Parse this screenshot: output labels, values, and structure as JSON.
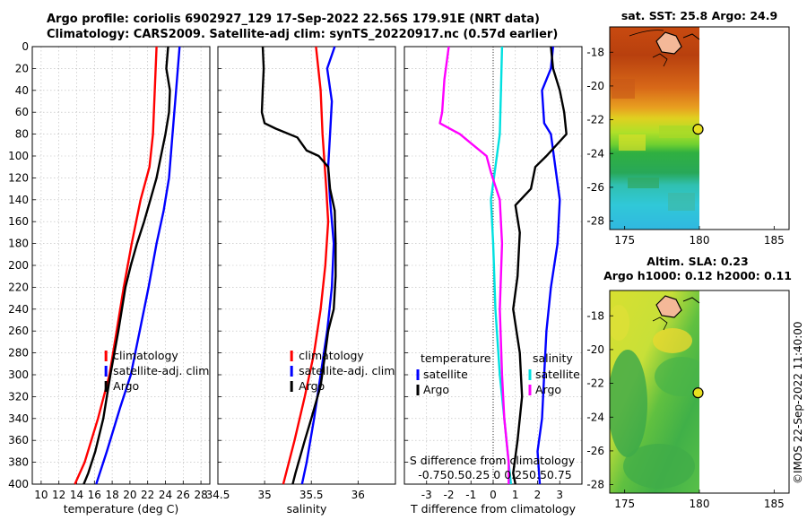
{
  "header": {
    "line1": "Argo profile: coriolis 6902927_129 17-Sep-2022 22.56S 179.91E (NRT data)",
    "line2": "Climatology: CARS2009. Satellite-adj clim: synTS_20220917.nc (0.57d earlier)"
  },
  "watermark": "©IMOS 22-Sep-2022 11:40:00",
  "colors": {
    "climatology": "#ff0000",
    "satellite": "#0000ff",
    "argo": "#000000",
    "sat_cyan": "#00e5e5",
    "argo_magenta": "#ff00ff"
  },
  "chart_data": [
    {
      "type": "line",
      "name": "temperature-profile",
      "xlabel": "temperature (deg C)",
      "xlim": [
        9,
        29
      ],
      "xticks": [
        10,
        12,
        14,
        16,
        18,
        20,
        22,
        24,
        26,
        28
      ],
      "ylim": [
        0,
        400
      ],
      "yticks": [
        0,
        20,
        40,
        60,
        80,
        100,
        120,
        140,
        160,
        180,
        200,
        220,
        240,
        260,
        280,
        300,
        320,
        340,
        360,
        380,
        400
      ],
      "legend": [
        "climatology",
        "satellite-adj. clim",
        "Argo"
      ],
      "legend_position": "bottom-right",
      "series": [
        {
          "name": "climatology",
          "color": "red",
          "points": [
            [
              23.0,
              0
            ],
            [
              22.8,
              40
            ],
            [
              22.6,
              80
            ],
            [
              22.2,
              110
            ],
            [
              21.2,
              140
            ],
            [
              20.2,
              180
            ],
            [
              19.3,
              220
            ],
            [
              18.5,
              260
            ],
            [
              17.7,
              300
            ],
            [
              16.4,
              340
            ],
            [
              14.9,
              380
            ],
            [
              13.8,
              400
            ]
          ]
        },
        {
          "name": "satellite-adj. clim",
          "color": "blue",
          "points": [
            [
              25.6,
              0
            ],
            [
              25.2,
              40
            ],
            [
              24.8,
              80
            ],
            [
              24.4,
              120
            ],
            [
              23.8,
              150
            ],
            [
              23.0,
              180
            ],
            [
              22.1,
              220
            ],
            [
              21.1,
              260
            ],
            [
              20.1,
              300
            ],
            [
              18.9,
              330
            ],
            [
              17.4,
              370
            ],
            [
              16.2,
              400
            ]
          ]
        },
        {
          "name": "Argo",
          "color": "black",
          "points": [
            [
              24.3,
              0
            ],
            [
              24.1,
              20
            ],
            [
              24.5,
              40
            ],
            [
              24.4,
              60
            ],
            [
              24.0,
              80
            ],
            [
              23.5,
              100
            ],
            [
              23.0,
              120
            ],
            [
              22.3,
              140
            ],
            [
              21.6,
              160
            ],
            [
              20.8,
              180
            ],
            [
              20.1,
              200
            ],
            [
              19.5,
              220
            ],
            [
              18.7,
              260
            ],
            [
              17.8,
              300
            ],
            [
              17.0,
              340
            ],
            [
              16.1,
              370
            ],
            [
              15.3,
              390
            ],
            [
              14.8,
              400
            ]
          ]
        }
      ]
    },
    {
      "type": "line",
      "name": "salinity-profile",
      "xlabel": "salinity",
      "xlim": [
        34.5,
        36.4
      ],
      "xticks": [
        34.5,
        35,
        35.5,
        36
      ],
      "xticklabels": [
        "34.5",
        "35",
        "35.5",
        "36"
      ],
      "ylim": [
        0,
        400
      ],
      "legend": [
        "climatology",
        "satellite-adj. clim",
        "Argo"
      ],
      "legend_position": "bottom-right",
      "series": [
        {
          "name": "climatology",
          "color": "red",
          "points": [
            [
              35.55,
              0
            ],
            [
              35.6,
              40
            ],
            [
              35.62,
              80
            ],
            [
              35.66,
              130
            ],
            [
              35.68,
              160
            ],
            [
              35.65,
              200
            ],
            [
              35.6,
              240
            ],
            [
              35.53,
              280
            ],
            [
              35.43,
              320
            ],
            [
              35.32,
              360
            ],
            [
              35.2,
              400
            ]
          ]
        },
        {
          "name": "satellite-adj. clim",
          "color": "blue",
          "points": [
            [
              35.75,
              0
            ],
            [
              35.67,
              20
            ],
            [
              35.72,
              50
            ],
            [
              35.7,
              80
            ],
            [
              35.68,
              110
            ],
            [
              35.7,
              140
            ],
            [
              35.74,
              180
            ],
            [
              35.72,
              220
            ],
            [
              35.67,
              260
            ],
            [
              35.6,
              300
            ],
            [
              35.53,
              340
            ],
            [
              35.45,
              380
            ],
            [
              35.4,
              400
            ]
          ]
        },
        {
          "name": "Argo",
          "color": "black",
          "points": [
            [
              34.98,
              0
            ],
            [
              34.99,
              20
            ],
            [
              34.98,
              40
            ],
            [
              34.97,
              60
            ],
            [
              35.0,
              70
            ],
            [
              35.12,
              75
            ],
            [
              35.35,
              83
            ],
            [
              35.45,
              95
            ],
            [
              35.58,
              100
            ],
            [
              35.68,
              110
            ],
            [
              35.7,
              130
            ],
            [
              35.75,
              150
            ],
            [
              35.76,
              180
            ],
            [
              35.76,
              210
            ],
            [
              35.74,
              240
            ],
            [
              35.68,
              260
            ],
            [
              35.65,
              280
            ],
            [
              35.6,
              310
            ],
            [
              35.5,
              340
            ],
            [
              35.43,
              360
            ],
            [
              35.33,
              390
            ],
            [
              35.3,
              400
            ]
          ]
        }
      ]
    },
    {
      "type": "line",
      "name": "difference-profile",
      "xlabel": "T difference from climatology",
      "xlim": [
        -4,
        4
      ],
      "xticks": [
        -3,
        -2,
        -1,
        0,
        1,
        2,
        3
      ],
      "top_label": "S difference from climatology",
      "top_ticks_text": "-0.750.50.25  0  0.250.50.75",
      "ylim": [
        0,
        400
      ],
      "legend_temperature_title": "temperature",
      "legend_salinity_title": "salinity",
      "legend_temperature": [
        "satellite",
        "Argo"
      ],
      "legend_salinity": [
        "satellite",
        "Argo"
      ],
      "series": [
        {
          "name": "T satellite",
          "color": "blue",
          "points": [
            [
              2.7,
              0
            ],
            [
              2.6,
              20
            ],
            [
              2.2,
              40
            ],
            [
              2.3,
              70
            ],
            [
              2.6,
              80
            ],
            [
              2.8,
              110
            ],
            [
              3.0,
              140
            ],
            [
              2.9,
              180
            ],
            [
              2.6,
              220
            ],
            [
              2.4,
              260
            ],
            [
              2.3,
              300
            ],
            [
              2.2,
              340
            ],
            [
              2.0,
              370
            ],
            [
              2.1,
              400
            ]
          ]
        },
        {
          "name": "T Argo",
          "color": "black",
          "points": [
            [
              2.6,
              0
            ],
            [
              2.7,
              20
            ],
            [
              3.0,
              40
            ],
            [
              3.2,
              60
            ],
            [
              3.3,
              80
            ],
            [
              2.4,
              100
            ],
            [
              1.9,
              110
            ],
            [
              1.7,
              130
            ],
            [
              1.0,
              145
            ],
            [
              1.2,
              170
            ],
            [
              1.1,
              210
            ],
            [
              0.9,
              240
            ],
            [
              1.2,
              280
            ],
            [
              1.3,
              320
            ],
            [
              1.1,
              360
            ],
            [
              0.9,
              390
            ],
            [
              1.0,
              400
            ]
          ]
        },
        {
          "name": "S satellite",
          "color": "cyan",
          "points": [
            [
              0.4,
              0
            ],
            [
              0.35,
              40
            ],
            [
              0.3,
              80
            ],
            [
              0.1,
              110
            ],
            [
              -0.1,
              140
            ],
            [
              0.0,
              180
            ],
            [
              0.1,
              240
            ],
            [
              0.3,
              300
            ],
            [
              0.5,
              340
            ],
            [
              0.7,
              380
            ],
            [
              0.8,
              400
            ]
          ]
        },
        {
          "name": "S Argo",
          "color": "magenta",
          "points": [
            [
              -2.0,
              0
            ],
            [
              -2.2,
              30
            ],
            [
              -2.3,
              60
            ],
            [
              -2.4,
              70
            ],
            [
              -1.5,
              80
            ],
            [
              -0.9,
              90
            ],
            [
              -0.3,
              100
            ],
            [
              -0.1,
              115
            ],
            [
              0.3,
              140
            ],
            [
              0.4,
              180
            ],
            [
              0.3,
              240
            ],
            [
              0.4,
              300
            ],
            [
              0.5,
              340
            ],
            [
              0.7,
              380
            ],
            [
              0.7,
              400
            ]
          ]
        }
      ]
    },
    {
      "type": "heatmap",
      "name": "sst-map",
      "title": "sat. SST: 25.8 Argo: 24.9",
      "xlim": [
        174,
        186
      ],
      "ylim": [
        -28.5,
        -16.5
      ],
      "xticks": [
        175,
        180,
        185
      ],
      "yticks": [
        -18,
        -20,
        -22,
        -24,
        -26,
        -28
      ],
      "marker": {
        "lon": 179.91,
        "lat": -22.56
      },
      "zones": [
        {
          "lat_from": -16.5,
          "lat_to": -22.0,
          "value": "warm (dark red-orange)"
        },
        {
          "lat_from": -22.0,
          "lat_to": -24.0,
          "value": "yellow-green"
        },
        {
          "lat_from": -24.0,
          "lat_to": -26.0,
          "value": "green"
        },
        {
          "lat_from": -26.0,
          "lat_to": -28.5,
          "value": "cyan-blue"
        }
      ]
    },
    {
      "type": "heatmap",
      "name": "sla-map",
      "title": "Altim. SLA: 0.23",
      "subtitle": "Argo h1000: 0.12 h2000: 0.11",
      "xlim": [
        174,
        186
      ],
      "ylim": [
        -28.5,
        -16.5
      ],
      "xticks": [
        175,
        180,
        185
      ],
      "yticks": [
        -18,
        -20,
        -22,
        -24,
        -26,
        -28
      ],
      "marker": {
        "lon": 179.91,
        "lat": -22.56
      }
    }
  ]
}
